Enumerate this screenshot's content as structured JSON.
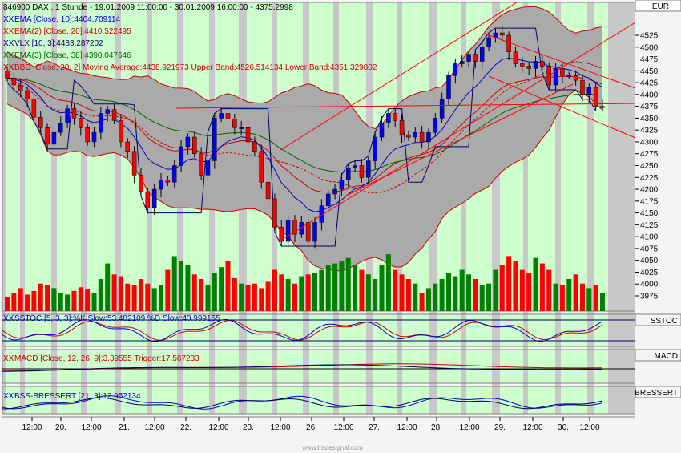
{
  "chart_data": {
    "type": "candlestick",
    "title": "846900  DAX , 1 Stunde - 19.01.2009 11:00:00 - 30.01.2009 16:00:00 - 4375.2998",
    "currency": "EUR",
    "ylim": [
      3950,
      4570
    ],
    "yticks": [
      "4525",
      "4500",
      "4475",
      "4450",
      "4425",
      "4400",
      "4375",
      "4350",
      "4325",
      "4300",
      "4275",
      "4250",
      "4225",
      "4200",
      "4175",
      "4150",
      "4125",
      "4100",
      "4075",
      "4050",
      "4025",
      "4000",
      "3975"
    ],
    "xticks": [
      "12:00",
      "20.",
      "12:00",
      "21.",
      "12:00",
      "22.",
      "12:00",
      "23.",
      "12:00",
      "26.",
      "12:00",
      "27.",
      "12:00",
      "28.",
      "12:00",
      "29.",
      "12:00",
      "30.",
      "12:00"
    ],
    "legend": [
      {
        "text": "846900  DAX , 1 Stunde - 19.01.2009 11:00:00 - 30.01.2009 16:00:00 - 4375.2998",
        "color": "#000000"
      },
      {
        "text": "EMA [Close, 10]:4404.709114",
        "color": "#0000cc"
      },
      {
        "text": "EMA(2) [Close, 20]:4410.522495",
        "color": "#cc0000"
      },
      {
        "text": "VLX [10, 3]:4483.287202",
        "color": "#000066"
      },
      {
        "text": "EMA(3) [Close, 38]:4390.047646",
        "color": "#006600"
      },
      {
        "text": "BBD [Close, 20, 2] Moving Average:4438.921973 Upper Band:4526.514134 Lower Band:4351.329802",
        "color": "#cc0000"
      }
    ],
    "closes": [
      4435,
      4420,
      4408,
      4390,
      4352,
      4330,
      4295,
      4320,
      4340,
      4370,
      4350,
      4330,
      4300,
      4320,
      4360,
      4368,
      4345,
      4300,
      4280,
      4230,
      4195,
      4160,
      4200,
      4220,
      4215,
      4250,
      4290,
      4310,
      4275,
      4230,
      4260,
      4350,
      4360,
      4348,
      4330,
      4330,
      4300,
      4280,
      4215,
      4180,
      4120,
      4090,
      4135,
      4105,
      4130,
      4090,
      4130,
      4165,
      4190,
      4200,
      4220,
      4245,
      4250,
      4225,
      4260,
      4310,
      4340,
      4360,
      4345,
      4315,
      4310,
      4320,
      4300,
      4320,
      4350,
      4390,
      4440,
      4465,
      4470,
      4485,
      4470,
      4500,
      4520,
      4530,
      4525,
      4490,
      4465,
      4460,
      4455,
      4470,
      4460,
      4420,
      4455,
      4440,
      4440,
      4430,
      4400,
      4415,
      4375,
      4375
    ],
    "volumes": [
      15,
      20,
      25,
      18,
      22,
      30,
      28,
      25,
      20,
      18,
      22,
      26,
      24,
      20,
      35,
      52,
      40,
      38,
      30,
      28,
      35,
      30,
      25,
      28,
      45,
      60,
      55,
      50,
      40,
      35,
      28,
      42,
      48,
      55,
      36,
      30,
      28,
      30,
      25,
      32,
      45,
      40,
      35,
      30,
      38,
      40,
      42,
      45,
      50,
      52,
      55,
      58,
      50,
      45,
      40,
      35,
      50,
      62,
      45,
      40,
      35,
      30,
      20,
      25,
      30,
      35,
      42,
      38,
      45,
      40,
      35,
      28,
      30,
      45,
      50,
      60,
      55,
      45,
      42,
      58,
      52,
      45,
      30,
      28,
      35,
      40,
      30,
      25,
      28,
      20
    ],
    "indicators": [
      {
        "text": "SSTOC [5, 3, 3]:%K Slow:53.482109 %D Slow:40.999155",
        "color": "#0000cc",
        "label": "SSTOC"
      },
      {
        "text": "MACD [Close, 12, 26, 9]:3.39555  Trigger:17.567233",
        "color": "#cc0000",
        "label": "MACD"
      },
      {
        "text": "BSS-BRESSERT [21, 3]:12.952134",
        "color": "#0000cc",
        "label": "BRESSERT"
      }
    ],
    "watermark": "www.tradesignal.com"
  }
}
